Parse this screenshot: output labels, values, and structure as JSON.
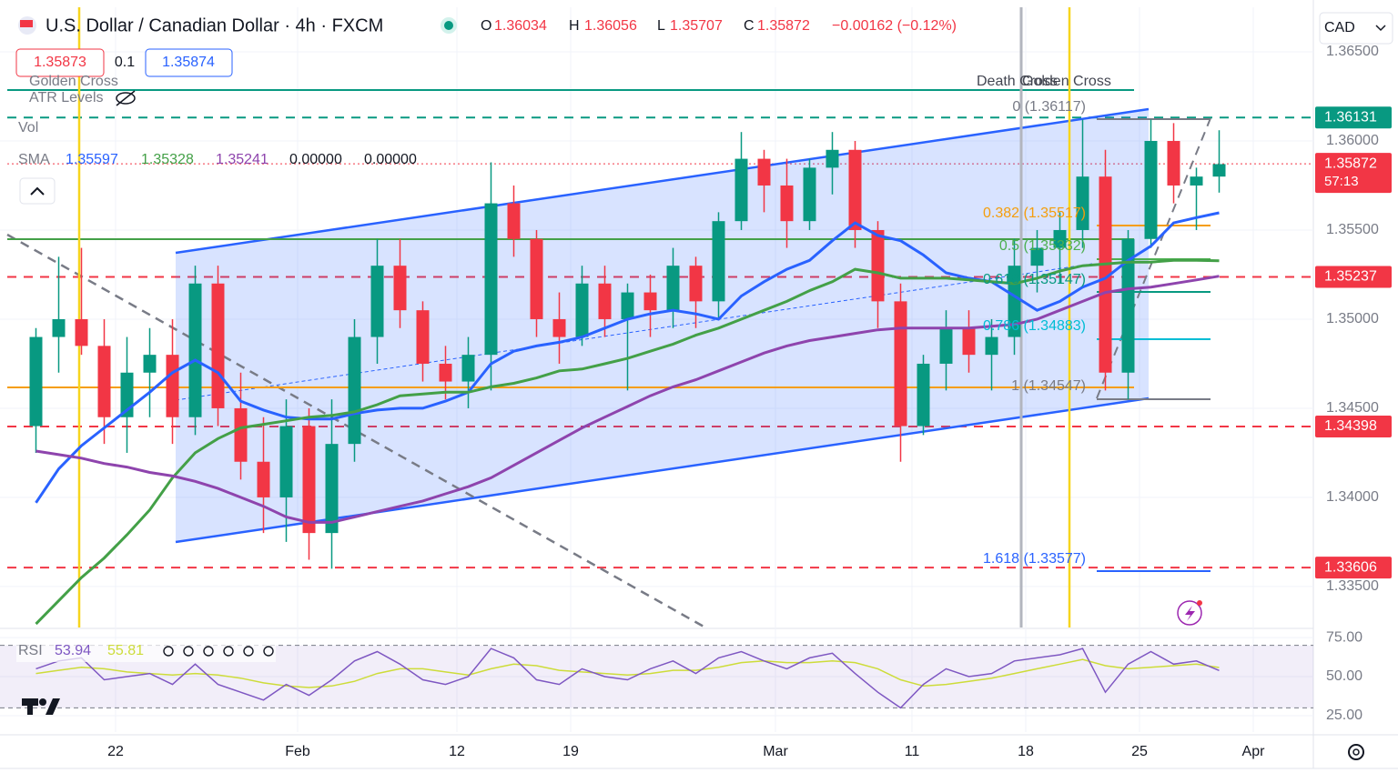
{
  "header": {
    "symbol": "U.S. Dollar / Canadian Dollar · 4h · FXCM",
    "ohlc": [
      {
        "key": "O",
        "value": "1.36034"
      },
      {
        "key": "H",
        "value": "1.36056"
      },
      {
        "key": "L",
        "value": "1.35707"
      },
      {
        "key": "C",
        "value": "1.35872"
      }
    ],
    "change": "−0.00162 (−0.12%)",
    "bid": "1.35873",
    "spread": "0.1",
    "ask": "1.35874",
    "currency": "CAD"
  },
  "indicators": {
    "golden_cross": "Golden Cross",
    "atr": "ATR Levels",
    "vol": "Vol",
    "sma_name": "SMA",
    "sma_values": [
      "1.35597",
      "1.35328",
      "1.35241",
      "0.00000",
      "0.00000"
    ],
    "rsi_name": "RSI",
    "rsi_values": [
      "53.94",
      "55.81"
    ]
  },
  "annotations": {
    "death_cross": "Death Cross",
    "golden_cross": "Golden Cross",
    "fib": [
      "0 (1.36117)",
      "0.382 (1.35517)",
      "0.5 (1.35332)",
      "0.618 (1.35147)",
      "0.786 (1.34883)",
      "1 (1.34547)",
      "1.618 (1.33577)"
    ]
  },
  "chart_data": [
    {
      "type": "candlestick",
      "categories": [
        null,
        null,
        null,
        null,
        "22",
        null,
        null,
        null,
        null,
        null,
        null,
        null,
        "Feb",
        null,
        null,
        null,
        null,
        null,
        null,
        "12",
        null,
        null,
        null,
        null,
        "19",
        null,
        null,
        null,
        null,
        null,
        null,
        null,
        null,
        "Mar",
        null,
        null,
        null,
        null,
        null,
        "11",
        null,
        null,
        null,
        null,
        "18",
        null,
        null,
        null,
        null,
        "25",
        null,
        null,
        null,
        null,
        "Apr"
      ],
      "open": [
        1.344,
        1.349,
        1.35,
        1.3485,
        1.3445,
        1.347,
        1.348,
        1.3445,
        1.352,
        1.345,
        1.342,
        1.34,
        1.344,
        1.338,
        1.343,
        1.349,
        1.353,
        1.3505,
        1.3475,
        1.3465,
        1.348,
        1.3565,
        1.3545,
        1.35,
        1.349,
        1.352,
        1.35,
        1.3515,
        1.3505,
        1.353,
        1.351,
        1.3555,
        1.359,
        1.3575,
        1.3555,
        1.3585,
        1.3595,
        1.355,
        1.351,
        1.344,
        1.3475,
        1.3495,
        1.348,
        1.349,
        1.353,
        1.354,
        1.355,
        1.358,
        1.347,
        1.3545,
        1.36,
        1.3575,
        1.358,
        null,
        null
      ],
      "high": [
        1.3495,
        1.3535,
        1.354,
        1.35,
        1.349,
        1.3495,
        1.35,
        1.353,
        1.353,
        1.347,
        1.3445,
        1.3455,
        1.345,
        1.3455,
        1.35,
        1.3545,
        1.3545,
        1.351,
        1.3485,
        1.349,
        1.3588,
        1.3575,
        1.355,
        1.3515,
        1.353,
        1.353,
        1.352,
        1.3525,
        1.354,
        1.3535,
        1.356,
        1.3605,
        1.3595,
        1.359,
        1.359,
        1.3605,
        1.36,
        1.3555,
        1.352,
        1.348,
        1.3505,
        1.3505,
        1.35,
        1.3545,
        1.355,
        1.356,
        1.3612,
        1.3595,
        1.355,
        1.3612,
        1.361,
        1.3585,
        1.3606,
        null,
        null
      ],
      "low": [
        1.3425,
        1.347,
        1.348,
        1.343,
        1.3425,
        1.3445,
        1.343,
        1.3435,
        1.344,
        1.341,
        1.338,
        1.3375,
        1.3365,
        1.336,
        1.342,
        1.3475,
        1.3495,
        1.3465,
        1.3455,
        1.345,
        1.346,
        1.3535,
        1.349,
        1.3475,
        1.3485,
        1.349,
        1.346,
        1.349,
        1.3495,
        1.3495,
        1.35,
        1.355,
        1.356,
        1.354,
        1.355,
        1.357,
        1.354,
        1.3495,
        1.342,
        1.3435,
        1.346,
        1.347,
        1.346,
        1.348,
        1.3515,
        1.352,
        1.354,
        1.346,
        1.3455,
        1.354,
        1.3565,
        1.355,
        1.3571,
        null,
        null
      ],
      "close": [
        1.349,
        1.35,
        1.3485,
        1.3445,
        1.347,
        1.348,
        1.3445,
        1.352,
        1.345,
        1.342,
        1.34,
        1.344,
        1.338,
        1.343,
        1.349,
        1.353,
        1.3505,
        1.3475,
        1.3465,
        1.348,
        1.3565,
        1.3545,
        1.35,
        1.349,
        1.352,
        1.35,
        1.3515,
        1.3505,
        1.353,
        1.351,
        1.3555,
        1.359,
        1.3575,
        1.3555,
        1.3585,
        1.3595,
        1.355,
        1.351,
        1.344,
        1.3475,
        1.3495,
        1.348,
        1.349,
        1.353,
        1.354,
        1.355,
        1.358,
        1.347,
        1.3545,
        1.36,
        1.3575,
        1.358,
        1.3587,
        null,
        null
      ],
      "up_color": "#089981",
      "down_color": "#f23645",
      "series": [
        {
          "color": "#2962ff",
          "values": [
            1.3397,
            1.3416,
            1.3429,
            1.3439,
            1.3449,
            1.3459,
            1.347,
            1.3477,
            1.347,
            1.3454,
            1.3449,
            1.3445,
            1.3444,
            1.3444,
            1.3447,
            1.3449,
            1.345,
            1.345,
            1.3454,
            1.3459,
            1.3475,
            1.3482,
            1.3485,
            1.3487,
            1.349,
            1.3495,
            1.35,
            1.3503,
            1.3505,
            1.3503,
            1.35,
            1.3513,
            1.3521,
            1.3528,
            1.3533,
            1.3544,
            1.3554,
            1.3547,
            1.3544,
            1.3536,
            1.3526,
            1.3523,
            1.3521,
            1.3513,
            1.3505,
            1.351,
            1.3518,
            1.3523,
            1.3533,
            1.3541,
            1.3554,
            1.3557,
            1.35597,
            null,
            null
          ]
        },
        {
          "color": "#43a047",
          "values": [
            1.3329,
            1.3342,
            1.3355,
            1.3366,
            1.3379,
            1.3393,
            1.3411,
            1.3425,
            1.3433,
            1.3439,
            1.3441,
            1.3443,
            1.3445,
            1.3446,
            1.3448,
            1.3452,
            1.3457,
            1.3458,
            1.3459,
            1.3459,
            1.3462,
            1.3464,
            1.3467,
            1.3471,
            1.3472,
            1.3475,
            1.3478,
            1.3482,
            1.3486,
            1.3491,
            1.3495,
            1.35,
            1.3505,
            1.351,
            1.3516,
            1.3521,
            1.3528,
            1.3526,
            1.3523,
            1.3523,
            1.3523,
            1.3522,
            1.3521,
            1.352,
            1.3523,
            1.3527,
            1.353,
            1.3531,
            1.3532,
            1.3532,
            1.3533,
            1.3533,
            1.35328,
            null,
            null
          ]
        },
        {
          "color": "#8e44ad",
          "values": [
            1.3426,
            1.3424,
            1.3422,
            1.3419,
            1.3417,
            1.3414,
            1.3412,
            1.3409,
            1.3405,
            1.34,
            1.3395,
            1.3389,
            1.3386,
            1.3386,
            1.3389,
            1.3392,
            1.3395,
            1.3398,
            1.3402,
            1.3406,
            1.3411,
            1.3418,
            1.3425,
            1.3432,
            1.3439,
            1.3445,
            1.3451,
            1.3457,
            1.3462,
            1.3466,
            1.3471,
            1.3476,
            1.3481,
            1.3485,
            1.3488,
            1.349,
            1.3492,
            1.3494,
            1.3495,
            1.3495,
            1.3495,
            1.3495,
            1.3496,
            1.3497,
            1.35,
            1.3505,
            1.351,
            1.3515,
            1.3517,
            1.3518,
            1.352,
            1.3522,
            1.35241,
            null,
            null
          ]
        }
      ],
      "price_lines": [
        {
          "value": 1.36131,
          "color": "#089981",
          "style": "dashed"
        },
        {
          "value": 1.35872,
          "color": "#f23645",
          "style": "dotted",
          "countdown": "57:13"
        },
        {
          "value": 1.35237,
          "color": "#f23645",
          "style": "dashed"
        },
        {
          "value": 1.34398,
          "color": "#f23645",
          "style": "dashed"
        },
        {
          "value": 1.33606,
          "color": "#f23645",
          "style": "dashed"
        }
      ],
      "ylim": [
        1.3327,
        1.3675
      ],
      "yticks": [
        {
          "value": 1.335,
          "label": "1.33500"
        },
        {
          "value": 1.34,
          "label": "1.34000"
        },
        {
          "value": 1.345,
          "label": "1.34500"
        },
        {
          "value": 1.35,
          "label": "1.35000"
        },
        {
          "value": 1.355,
          "label": "1.35500"
        },
        {
          "value": 1.36,
          "label": "1.36000"
        },
        {
          "value": 1.365,
          "label": "1.36500"
        }
      ],
      "grid": true
    },
    {
      "type": "line",
      "series": [
        {
          "color": "#7e57c2",
          "values": [
            55,
            60,
            62,
            48,
            50,
            52,
            45,
            58,
            45,
            40,
            35,
            45,
            38,
            48,
            60,
            66,
            58,
            48,
            45,
            50,
            68,
            62,
            48,
            45,
            55,
            50,
            48,
            55,
            60,
            52,
            62,
            66,
            60,
            55,
            62,
            65,
            52,
            40,
            30,
            45,
            55,
            50,
            52,
            60,
            62,
            64,
            68,
            40,
            58,
            66,
            58,
            60,
            53.94,
            null,
            null
          ]
        },
        {
          "color": "#cddc39",
          "values": [
            52,
            54,
            56,
            55,
            53,
            52,
            51,
            52,
            51,
            49,
            46,
            44,
            43,
            44,
            47,
            52,
            55,
            55,
            53,
            51,
            55,
            58,
            57,
            54,
            53,
            52,
            51,
            52,
            54,
            54,
            56,
            59,
            60,
            59,
            59,
            60,
            59,
            55,
            48,
            44,
            45,
            47,
            49,
            52,
            55,
            58,
            61,
            57,
            55,
            56,
            57,
            58,
            55.81,
            null,
            null
          ]
        }
      ],
      "band": [
        30,
        70
      ],
      "ylim": [
        14.5,
        79.7
      ],
      "yticks": [
        {
          "value": 25,
          "label": "25.00"
        },
        {
          "value": 50,
          "label": "50.00"
        },
        {
          "value": 75,
          "label": "75.00"
        }
      ]
    }
  ]
}
